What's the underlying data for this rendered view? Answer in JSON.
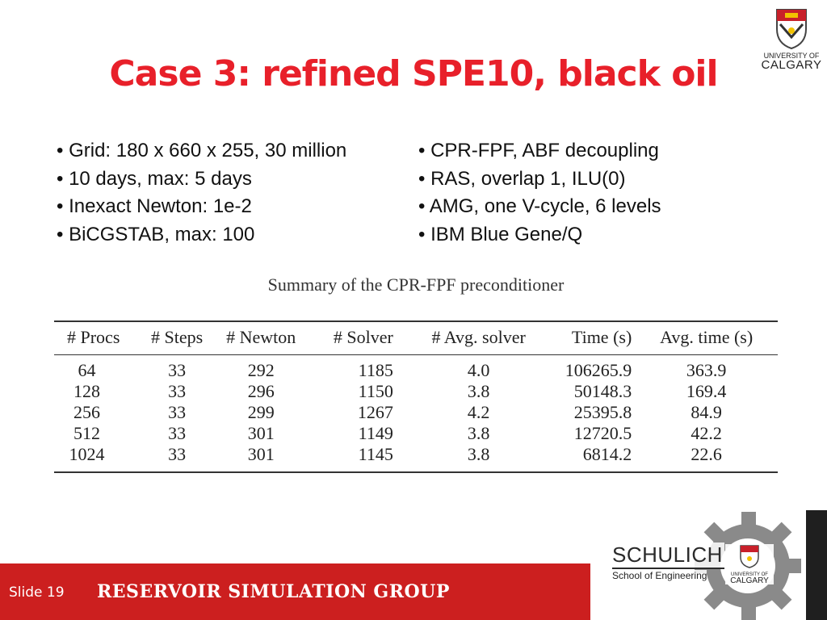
{
  "title": "Case 3: refined SPE10, black oil",
  "logo": {
    "line1": "UNIVERSITY OF",
    "line2": "CALGARY"
  },
  "bullets_left": [
    "• Grid: 180 x 660 x 255, 30 million",
    "• 10 days, max: 5 days",
    "• Inexact Newton: 1e-2",
    "• BiCGSTAB, max: 100"
  ],
  "bullets_right": [
    "• CPR-FPF, ABF decoupling",
    "• RAS, overlap 1, ILU(0)",
    "• AMG, one V-cycle, 6 levels",
    "• IBM Blue Gene/Q"
  ],
  "table": {
    "caption": "Summary of the CPR-FPF preconditioner",
    "headers": [
      "# Procs",
      "# Steps",
      "# Newton",
      "# Solver",
      "# Avg. solver",
      "Time (s)",
      "Avg. time (s)"
    ],
    "rows": [
      [
        "64",
        "33",
        "292",
        "1185",
        "4.0",
        "106265.9",
        "363.9"
      ],
      [
        "128",
        "33",
        "296",
        "1150",
        "3.8",
        "50148.3",
        "169.4"
      ],
      [
        "256",
        "33",
        "299",
        "1267",
        "4.2",
        "25395.8",
        "84.9"
      ],
      [
        "512",
        "33",
        "301",
        "1149",
        "3.8",
        "12720.5",
        "42.2"
      ],
      [
        "1024",
        "33",
        "301",
        "1145",
        "3.8",
        "6814.2",
        "22.6"
      ]
    ]
  },
  "footer": {
    "slide_label": "Slide 19",
    "group": "RESERVOIR SIMULATION GROUP",
    "bar_color": "#cc1f1f"
  },
  "schulich": {
    "name": "SCHULICH",
    "subtitle": "School of Engineering",
    "logo_line1": "UNIVERSITY OF",
    "logo_line2": "CALGARY"
  },
  "colors": {
    "title": "#e8202a"
  }
}
